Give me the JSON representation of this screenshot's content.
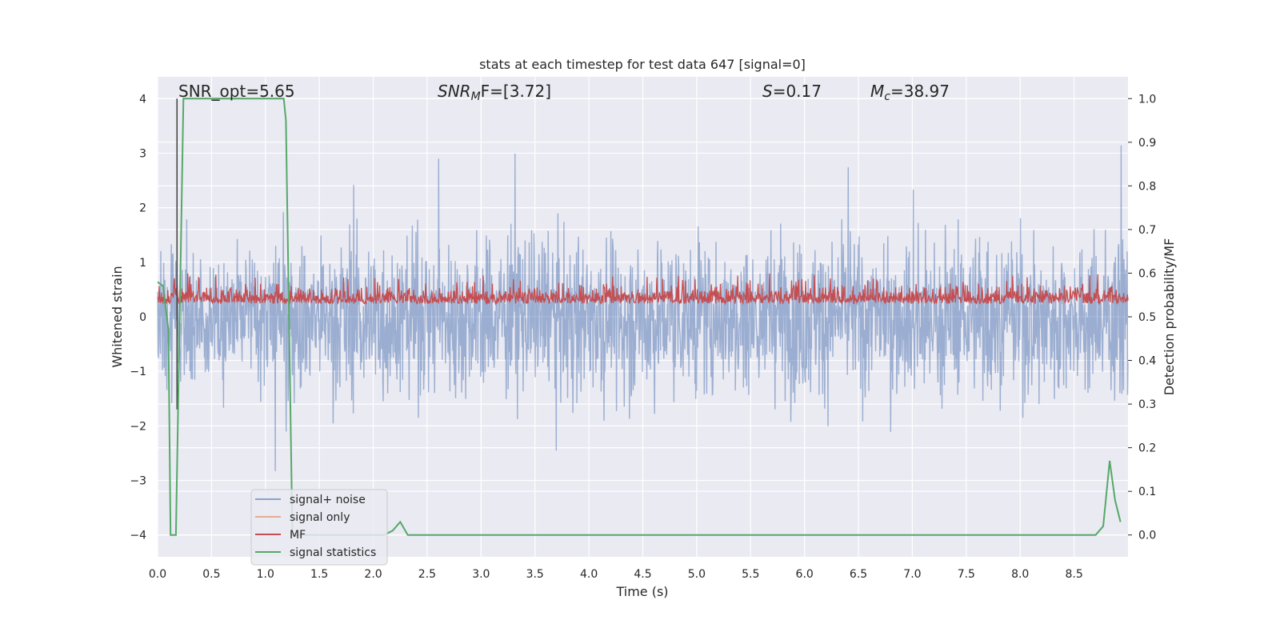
{
  "chart_data": {
    "type": "line",
    "title": "stats at each timestep for test data 647 [signal=0]",
    "xlabel": "Time (s)",
    "ylabel_left": "Whitened strain",
    "ylabel_right": "Detection probability/MF",
    "xlim": [
      0.0,
      9.0
    ],
    "ylim_left": [
      -4.4,
      4.4
    ],
    "ylim_right": [
      -0.05,
      1.05
    ],
    "x_ticks": [
      "0.0",
      "0.5",
      "1.0",
      "1.5",
      "2.0",
      "2.5",
      "3.0",
      "3.5",
      "4.0",
      "4.5",
      "5.0",
      "5.5",
      "6.0",
      "6.5",
      "7.0",
      "7.5",
      "8.0",
      "8.5"
    ],
    "y_ticks_left": [
      "−4",
      "−3",
      "−2",
      "−1",
      "0",
      "1",
      "2",
      "3",
      "4"
    ],
    "y_ticks_right": [
      "0.0",
      "0.1",
      "0.2",
      "0.3",
      "0.4",
      "0.5",
      "0.6",
      "0.7",
      "0.8",
      "0.9",
      "1.0"
    ],
    "grid": true,
    "background": "#eaeaf2",
    "annotations": {
      "snr_opt": "SNR_opt=5.65",
      "snr_mf_prefix": "SNR",
      "snr_mf_sub": "M",
      "snr_mf_suffix": "F=[3.72]",
      "s_var": "S",
      "s_val": "=0.17",
      "mc_var": "M",
      "mc_sub": "c",
      "mc_val": "=38.97"
    },
    "vertical_marker_x": 0.18,
    "legend": {
      "placement": "lower-left",
      "entries": [
        {
          "name": "signal+ noise",
          "color": "#4c72b0"
        },
        {
          "name": "signal only",
          "color": "#dd8452"
        },
        {
          "name": "MF",
          "color": "#c44e52"
        },
        {
          "name": "signal statistics",
          "color": "#55a868"
        }
      ]
    },
    "series": [
      {
        "name": "signal+ noise",
        "axis": "left",
        "color": "#4c72b0",
        "style": "dense noise, amplitude about ±2 with peaks near ±4"
      },
      {
        "name": "MF",
        "axis": "right",
        "color": "#c44e52",
        "style": "dense noise between 0.50 and 0.62"
      },
      {
        "name": "signal statistics",
        "axis": "right",
        "color": "#55a868",
        "x": [
          0.0,
          0.05,
          0.1,
          0.12,
          0.17,
          0.24,
          0.3,
          1.17,
          1.19,
          1.25,
          1.29,
          2.1,
          2.18,
          2.25,
          2.32,
          2.38,
          8.7,
          8.77,
          8.83,
          8.88,
          8.93
        ],
        "y": [
          0.58,
          0.57,
          0.47,
          0.0,
          0.0,
          1.0,
          1.0,
          1.0,
          0.95,
          0.0,
          0.0,
          0.0,
          0.01,
          0.03,
          0.0,
          0.0,
          0.0,
          0.02,
          0.17,
          0.08,
          0.03
        ]
      }
    ]
  }
}
